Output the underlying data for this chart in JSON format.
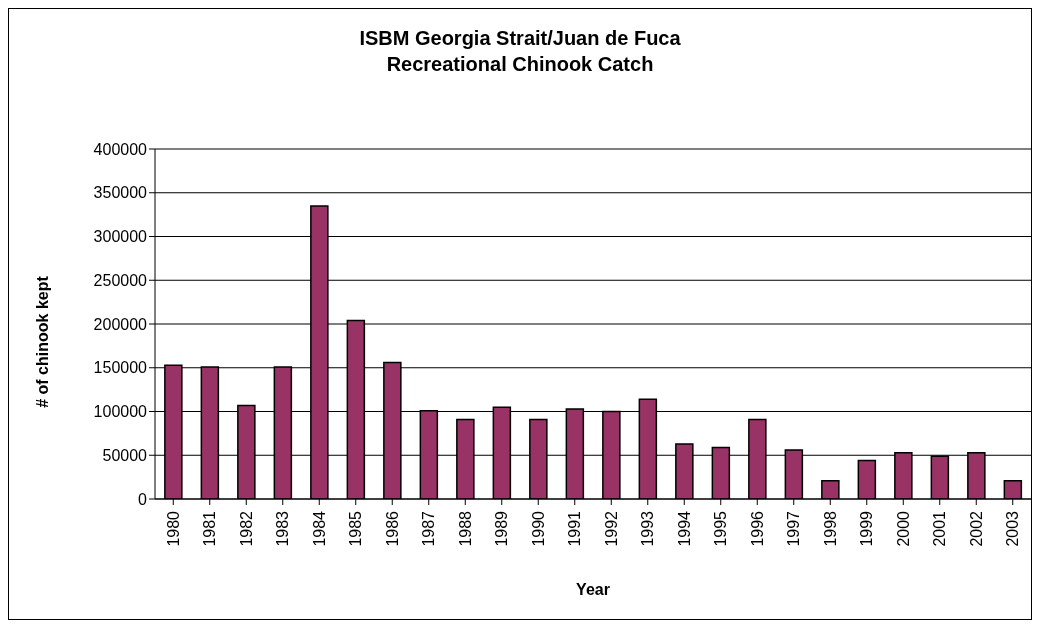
{
  "chart_data": {
    "type": "bar",
    "title": "ISBM Georgia Strait/Juan de Fuca\nRecreational Chinook Catch",
    "xlabel": "Year",
    "ylabel": "# of chinook kept",
    "categories": [
      "1980",
      "1981",
      "1982",
      "1983",
      "1984",
      "1985",
      "1986",
      "1987",
      "1988",
      "1989",
      "1990",
      "1991",
      "1992",
      "1993",
      "1994",
      "1995",
      "1996",
      "1997",
      "1998",
      "1999",
      "2000",
      "2001",
      "2002",
      "2003"
    ],
    "values": [
      153000,
      151000,
      107000,
      151000,
      335000,
      204000,
      156000,
      101000,
      91000,
      105000,
      91000,
      103000,
      100000,
      114000,
      63000,
      59000,
      91000,
      56000,
      21000,
      44000,
      53000,
      49000,
      53000,
      21000
    ],
    "color": "#993366",
    "ylim": [
      0,
      400000
    ],
    "yticks": [
      0,
      50000,
      100000,
      150000,
      200000,
      250000,
      300000,
      350000,
      400000
    ],
    "grid": "y",
    "legend": false
  }
}
